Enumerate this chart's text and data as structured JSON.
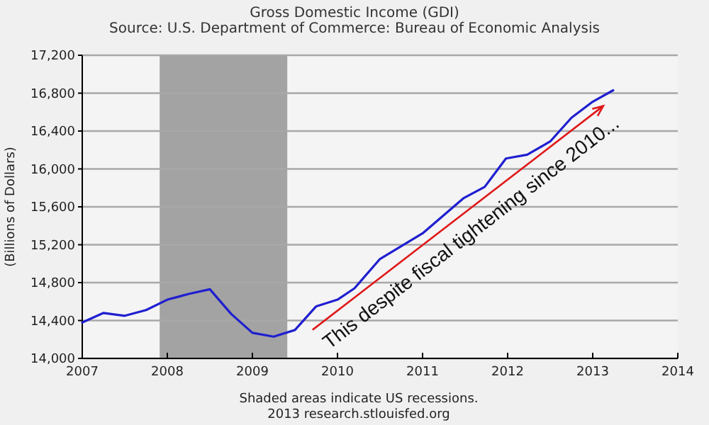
{
  "chart_data": {
    "type": "line",
    "title": "Gross Domestic Income (GDI)",
    "subtitle": "Source: U.S. Department of Commerce: Bureau of Economic Analysis",
    "ylabel": "(Billions of Dollars)",
    "x": [
      2007.0,
      2007.25,
      2007.5,
      2007.75,
      2008.0,
      2008.25,
      2008.5,
      2008.75,
      2009.0,
      2009.25,
      2009.5,
      2009.75,
      2010.0,
      2010.2,
      2010.5,
      2011.0,
      2011.48,
      2011.73,
      2011.98,
      2012.23,
      2012.5,
      2012.75,
      2013.0,
      2013.24
    ],
    "series": [
      {
        "color": "#1f1fd0",
        "values": [
          14380,
          14480,
          14450,
          14510,
          14620,
          14680,
          14730,
          14470,
          14270,
          14230,
          14300,
          14550,
          14620,
          14740,
          15050,
          15320,
          15690,
          15810,
          16110,
          16150,
          16290,
          16540,
          16710,
          16830
        ]
      }
    ],
    "xlim": [
      2007,
      2014
    ],
    "xticks": [
      2007,
      2008,
      2009,
      2010,
      2011,
      2012,
      2013,
      2014
    ],
    "ylim": [
      14000,
      17200
    ],
    "yticks": [
      {
        "value": 14000,
        "label": "14,000"
      },
      {
        "value": 14400,
        "label": "14,400"
      },
      {
        "value": 14800,
        "label": "14,800"
      },
      {
        "value": 15200,
        "label": "15,200"
      },
      {
        "value": 15600,
        "label": "15,600"
      },
      {
        "value": 16000,
        "label": "16,000"
      },
      {
        "value": 16400,
        "label": "16,400"
      },
      {
        "value": 16800,
        "label": "16,800"
      },
      {
        "value": 17200,
        "label": "17,200"
      }
    ],
    "grid": "y",
    "marker": "none",
    "line_style": "solid",
    "bands": [
      {
        "axis": "x",
        "from": 2007.91,
        "to": 2009.41,
        "color": "#a3a3a3"
      }
    ],
    "annotations": [
      "This despite fiscal tightening since 2010...",
      "Shaded areas indicate US recessions.",
      "2013 research.stlouisfed.org"
    ]
  }
}
